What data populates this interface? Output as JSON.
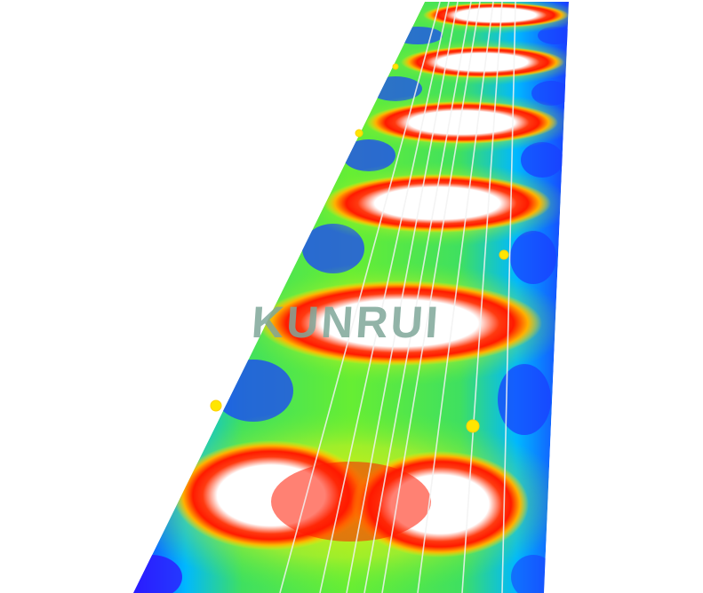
{
  "image": {
    "subject": "heat-illuminance-plot",
    "watermark_text": "KUNRUI",
    "colors": {
      "background": "#ffffff",
      "hot_core": "#ffffff",
      "hot_ring": "#ff1a00",
      "warm": "#ffe000",
      "mid": "#39e000",
      "cool": "#00d0ff",
      "cold": "#0030ff",
      "track_lines": "#f2f2f2",
      "watermark": "#7fa79a"
    }
  }
}
